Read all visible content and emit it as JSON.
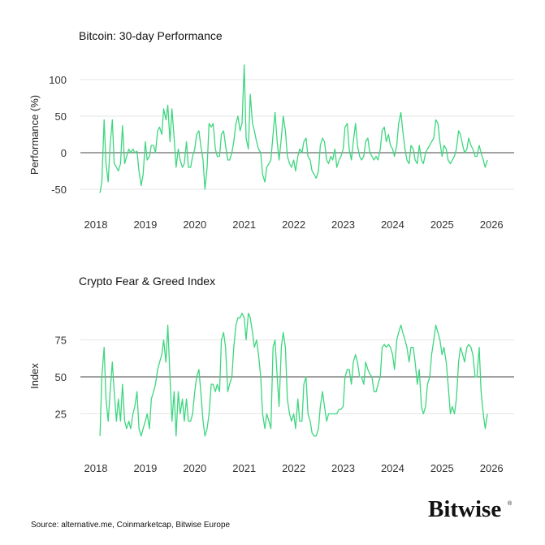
{
  "chart_data": [
    {
      "type": "line",
      "title": "Bitcoin: 30-day Performance",
      "xlabel": "",
      "ylabel": "Performance (%)",
      "xticks": [
        "2018",
        "2019",
        "2020",
        "2021",
        "2022",
        "2023",
        "2024",
        "2025",
        "2026"
      ],
      "yticks": [
        "100",
        "50",
        "0",
        "-50"
      ],
      "ytick_values": [
        100,
        50,
        0,
        -50
      ],
      "ylim": [
        -65,
        125
      ],
      "reference_line": 0,
      "grid": true,
      "color": "#3dd67f",
      "x": [
        "2018-02-01",
        "2018-02-15",
        "2018-03-01",
        "2018-03-15",
        "2018-04-01",
        "2018-04-15",
        "2018-05-01",
        "2018-05-15",
        "2018-06-01",
        "2018-06-15",
        "2018-07-01",
        "2018-07-15",
        "2018-08-01",
        "2018-08-15",
        "2018-09-01",
        "2018-09-15",
        "2018-10-01",
        "2018-10-15",
        "2018-11-01",
        "2018-11-15",
        "2018-12-01",
        "2018-12-15",
        "2019-01-01",
        "2019-01-15",
        "2019-02-01",
        "2019-02-15",
        "2019-03-01",
        "2019-03-15",
        "2019-04-01",
        "2019-04-15",
        "2019-05-01",
        "2019-05-15",
        "2019-06-01",
        "2019-06-15",
        "2019-07-01",
        "2019-07-15",
        "2019-08-01",
        "2019-08-15",
        "2019-09-01",
        "2019-09-15",
        "2019-10-01",
        "2019-10-15",
        "2019-11-01",
        "2019-11-15",
        "2019-12-01",
        "2019-12-15",
        "2020-01-01",
        "2020-01-15",
        "2020-02-01",
        "2020-02-15",
        "2020-03-01",
        "2020-03-15",
        "2020-04-01",
        "2020-04-15",
        "2020-05-01",
        "2020-05-15",
        "2020-06-01",
        "2020-06-15",
        "2020-07-01",
        "2020-07-15",
        "2020-08-01",
        "2020-08-15",
        "2020-09-01",
        "2020-09-15",
        "2020-10-01",
        "2020-10-15",
        "2020-11-01",
        "2020-11-15",
        "2020-12-01",
        "2020-12-15",
        "2021-01-01",
        "2021-01-15",
        "2021-02-01",
        "2021-02-15",
        "2021-03-01",
        "2021-03-15",
        "2021-04-01",
        "2021-04-15",
        "2021-05-01",
        "2021-05-15",
        "2021-06-01",
        "2021-06-15",
        "2021-07-01",
        "2021-07-15",
        "2021-08-01",
        "2021-08-15",
        "2021-09-01",
        "2021-09-15",
        "2021-10-01",
        "2021-10-15",
        "2021-11-01",
        "2021-11-15",
        "2021-12-01",
        "2021-12-15",
        "2022-01-01",
        "2022-01-15",
        "2022-02-01",
        "2022-02-15",
        "2022-03-01",
        "2022-03-15",
        "2022-04-01",
        "2022-04-15",
        "2022-05-01",
        "2022-05-15",
        "2022-06-01",
        "2022-06-15",
        "2022-07-01",
        "2022-07-15",
        "2022-08-01",
        "2022-08-15",
        "2022-09-01",
        "2022-09-15",
        "2022-10-01",
        "2022-10-15",
        "2022-11-01",
        "2022-11-15",
        "2022-12-01",
        "2022-12-15",
        "2023-01-01",
        "2023-01-15",
        "2023-02-01",
        "2023-02-15",
        "2023-03-01",
        "2023-03-15",
        "2023-04-01",
        "2023-04-15",
        "2023-05-01",
        "2023-05-15",
        "2023-06-01",
        "2023-06-15",
        "2023-07-01",
        "2023-07-15",
        "2023-08-01",
        "2023-08-15",
        "2023-09-01",
        "2023-09-15",
        "2023-10-01",
        "2023-10-15",
        "2023-11-01",
        "2023-11-15",
        "2023-12-01",
        "2023-12-15",
        "2024-01-01",
        "2024-01-15",
        "2024-02-01",
        "2024-02-15",
        "2024-03-01",
        "2024-03-15",
        "2024-04-01",
        "2024-04-15",
        "2024-05-01",
        "2024-05-15",
        "2024-06-01",
        "2024-06-15",
        "2024-07-01",
        "2024-07-15",
        "2024-08-01",
        "2024-08-15",
        "2024-09-01",
        "2024-09-15",
        "2024-10-01",
        "2024-10-15",
        "2024-11-01",
        "2024-11-15",
        "2024-12-01",
        "2024-12-15",
        "2025-01-01",
        "2025-01-15",
        "2025-02-01",
        "2025-02-15",
        "2025-03-01",
        "2025-03-15",
        "2025-04-01",
        "2025-04-15",
        "2025-05-01",
        "2025-05-15",
        "2025-06-01",
        "2025-06-15",
        "2025-07-01",
        "2025-07-15",
        "2025-08-01",
        "2025-08-15",
        "2025-09-01",
        "2025-09-15",
        "2025-10-01",
        "2025-10-15",
        "2025-11-01",
        "2025-11-15",
        "2025-12-01"
      ],
      "y": [
        -55,
        -40,
        45,
        -15,
        -40,
        10,
        45,
        -15,
        -20,
        -25,
        -15,
        37,
        -15,
        -5,
        5,
        0,
        5,
        0,
        2,
        -25,
        -45,
        -30,
        15,
        -10,
        -5,
        10,
        10,
        0,
        30,
        35,
        25,
        60,
        45,
        65,
        15,
        60,
        20,
        -20,
        5,
        -10,
        -20,
        -15,
        15,
        -20,
        -20,
        -5,
        5,
        25,
        30,
        10,
        -10,
        -50,
        -20,
        40,
        35,
        40,
        5,
        -5,
        -5,
        25,
        30,
        10,
        -10,
        -10,
        0,
        15,
        40,
        50,
        30,
        40,
        120,
        20,
        5,
        80,
        40,
        30,
        15,
        5,
        0,
        -30,
        -40,
        -20,
        -15,
        -10,
        25,
        55,
        15,
        -10,
        20,
        50,
        30,
        -5,
        -15,
        -20,
        -10,
        -25,
        -5,
        5,
        0,
        15,
        20,
        -5,
        -10,
        -25,
        -30,
        -35,
        -25,
        10,
        20,
        15,
        -10,
        -15,
        -5,
        -10,
        5,
        -20,
        -10,
        -5,
        5,
        35,
        40,
        5,
        -10,
        15,
        40,
        10,
        -5,
        -10,
        -5,
        15,
        20,
        0,
        -5,
        -10,
        -5,
        -10,
        5,
        30,
        35,
        15,
        25,
        10,
        5,
        -5,
        10,
        40,
        55,
        30,
        5,
        -10,
        -15,
        10,
        5,
        -10,
        -15,
        10,
        -10,
        -15,
        0,
        5,
        10,
        15,
        20,
        45,
        40,
        15,
        -5,
        10,
        5,
        -10,
        -15,
        -10,
        -5,
        5,
        30,
        25,
        10,
        0,
        5,
        20,
        10,
        5,
        -5,
        -5,
        10,
        0,
        -10,
        -20,
        -10
      ]
    },
    {
      "type": "line",
      "title": "Crypto Fear & Greed Index",
      "xlabel": "",
      "ylabel": "Index",
      "xticks": [
        "2018",
        "2019",
        "2020",
        "2021",
        "2022",
        "2023",
        "2024",
        "2025",
        "2026"
      ],
      "yticks": [
        "75",
        "50",
        "25"
      ],
      "ytick_values": [
        75,
        50,
        25
      ],
      "ylim": [
        0,
        100
      ],
      "reference_line": 50,
      "grid": true,
      "color": "#3dd67f",
      "x": [
        "2018-02-01",
        "2018-02-15",
        "2018-03-01",
        "2018-03-15",
        "2018-04-01",
        "2018-04-15",
        "2018-05-01",
        "2018-05-15",
        "2018-06-01",
        "2018-06-15",
        "2018-07-01",
        "2018-07-15",
        "2018-08-01",
        "2018-08-15",
        "2018-09-01",
        "2018-09-15",
        "2018-10-01",
        "2018-10-15",
        "2018-11-01",
        "2018-11-15",
        "2018-12-01",
        "2018-12-15",
        "2019-01-01",
        "2019-01-15",
        "2019-02-01",
        "2019-02-15",
        "2019-03-01",
        "2019-03-15",
        "2019-04-01",
        "2019-04-15",
        "2019-05-01",
        "2019-05-15",
        "2019-06-01",
        "2019-06-15",
        "2019-07-01",
        "2019-07-15",
        "2019-08-01",
        "2019-08-15",
        "2019-09-01",
        "2019-09-15",
        "2019-10-01",
        "2019-10-15",
        "2019-11-01",
        "2019-11-15",
        "2019-12-01",
        "2019-12-15",
        "2020-01-01",
        "2020-01-15",
        "2020-02-01",
        "2020-02-15",
        "2020-03-01",
        "2020-03-15",
        "2020-04-01",
        "2020-04-15",
        "2020-05-01",
        "2020-05-15",
        "2020-06-01",
        "2020-06-15",
        "2020-07-01",
        "2020-07-15",
        "2020-08-01",
        "2020-08-15",
        "2020-09-01",
        "2020-09-15",
        "2020-10-01",
        "2020-10-15",
        "2020-11-01",
        "2020-11-15",
        "2020-12-01",
        "2020-12-15",
        "2021-01-01",
        "2021-01-15",
        "2021-02-01",
        "2021-02-15",
        "2021-03-01",
        "2021-03-15",
        "2021-04-01",
        "2021-04-15",
        "2021-05-01",
        "2021-05-15",
        "2021-06-01",
        "2021-06-15",
        "2021-07-01",
        "2021-07-15",
        "2021-08-01",
        "2021-08-15",
        "2021-09-01",
        "2021-09-15",
        "2021-10-01",
        "2021-10-15",
        "2021-11-01",
        "2021-11-15",
        "2021-12-01",
        "2021-12-15",
        "2022-01-01",
        "2022-01-15",
        "2022-02-01",
        "2022-02-15",
        "2022-03-01",
        "2022-03-15",
        "2022-04-01",
        "2022-04-15",
        "2022-05-01",
        "2022-05-15",
        "2022-06-01",
        "2022-06-15",
        "2022-07-01",
        "2022-07-15",
        "2022-08-01",
        "2022-08-15",
        "2022-09-01",
        "2022-09-15",
        "2022-10-01",
        "2022-10-15",
        "2022-11-01",
        "2022-11-15",
        "2022-12-01",
        "2022-12-15",
        "2023-01-01",
        "2023-01-15",
        "2023-02-01",
        "2023-02-15",
        "2023-03-01",
        "2023-03-15",
        "2023-04-01",
        "2023-04-15",
        "2023-05-01",
        "2023-05-15",
        "2023-06-01",
        "2023-06-15",
        "2023-07-01",
        "2023-07-15",
        "2023-08-01",
        "2023-08-15",
        "2023-09-01",
        "2023-09-15",
        "2023-10-01",
        "2023-10-15",
        "2023-11-01",
        "2023-11-15",
        "2023-12-01",
        "2023-12-15",
        "2024-01-01",
        "2024-01-15",
        "2024-02-01",
        "2024-02-15",
        "2024-03-01",
        "2024-03-15",
        "2024-04-01",
        "2024-04-15",
        "2024-05-01",
        "2024-05-15",
        "2024-06-01",
        "2024-06-15",
        "2024-07-01",
        "2024-07-15",
        "2024-08-01",
        "2024-08-15",
        "2024-09-01",
        "2024-09-15",
        "2024-10-01",
        "2024-10-15",
        "2024-11-01",
        "2024-11-15",
        "2024-12-01",
        "2024-12-15",
        "2025-01-01",
        "2025-01-15",
        "2025-02-01",
        "2025-02-15",
        "2025-03-01",
        "2025-03-15",
        "2025-04-01",
        "2025-04-15",
        "2025-05-01",
        "2025-05-15",
        "2025-06-01",
        "2025-06-15",
        "2025-07-01",
        "2025-07-15",
        "2025-08-01",
        "2025-08-15",
        "2025-09-01",
        "2025-09-15",
        "2025-10-01",
        "2025-10-15",
        "2025-11-01",
        "2025-11-15",
        "2025-12-01"
      ],
      "y": [
        10,
        50,
        70,
        35,
        20,
        40,
        60,
        40,
        20,
        35,
        20,
        45,
        20,
        15,
        20,
        15,
        25,
        30,
        40,
        15,
        10,
        15,
        20,
        25,
        15,
        35,
        40,
        45,
        55,
        60,
        65,
        75,
        60,
        85,
        50,
        20,
        40,
        10,
        40,
        25,
        35,
        20,
        35,
        20,
        20,
        25,
        40,
        50,
        55,
        40,
        20,
        10,
        15,
        25,
        45,
        45,
        40,
        45,
        40,
        75,
        80,
        70,
        40,
        45,
        50,
        70,
        85,
        90,
        90,
        93,
        90,
        75,
        93,
        90,
        80,
        70,
        75,
        65,
        50,
        25,
        15,
        25,
        20,
        15,
        70,
        75,
        50,
        30,
        70,
        80,
        70,
        35,
        25,
        20,
        25,
        15,
        35,
        20,
        20,
        45,
        50,
        25,
        20,
        12,
        10,
        10,
        15,
        30,
        40,
        30,
        20,
        25,
        25,
        25,
        25,
        25,
        28,
        28,
        30,
        50,
        55,
        55,
        45,
        60,
        65,
        60,
        50,
        50,
        45,
        60,
        55,
        52,
        50,
        40,
        40,
        45,
        50,
        70,
        72,
        70,
        72,
        70,
        65,
        55,
        75,
        80,
        85,
        80,
        75,
        70,
        60,
        70,
        70,
        60,
        45,
        55,
        30,
        25,
        30,
        45,
        50,
        65,
        75,
        85,
        80,
        75,
        65,
        70,
        60,
        45,
        25,
        30,
        25,
        35,
        60,
        70,
        65,
        60,
        70,
        72,
        70,
        65,
        50,
        50,
        70,
        40,
        25,
        15,
        25
      ]
    }
  ],
  "footer": {
    "source": "Source: alternative.me, Coinmarketcap, Bitwise Europe",
    "logo": "Bitwise"
  }
}
